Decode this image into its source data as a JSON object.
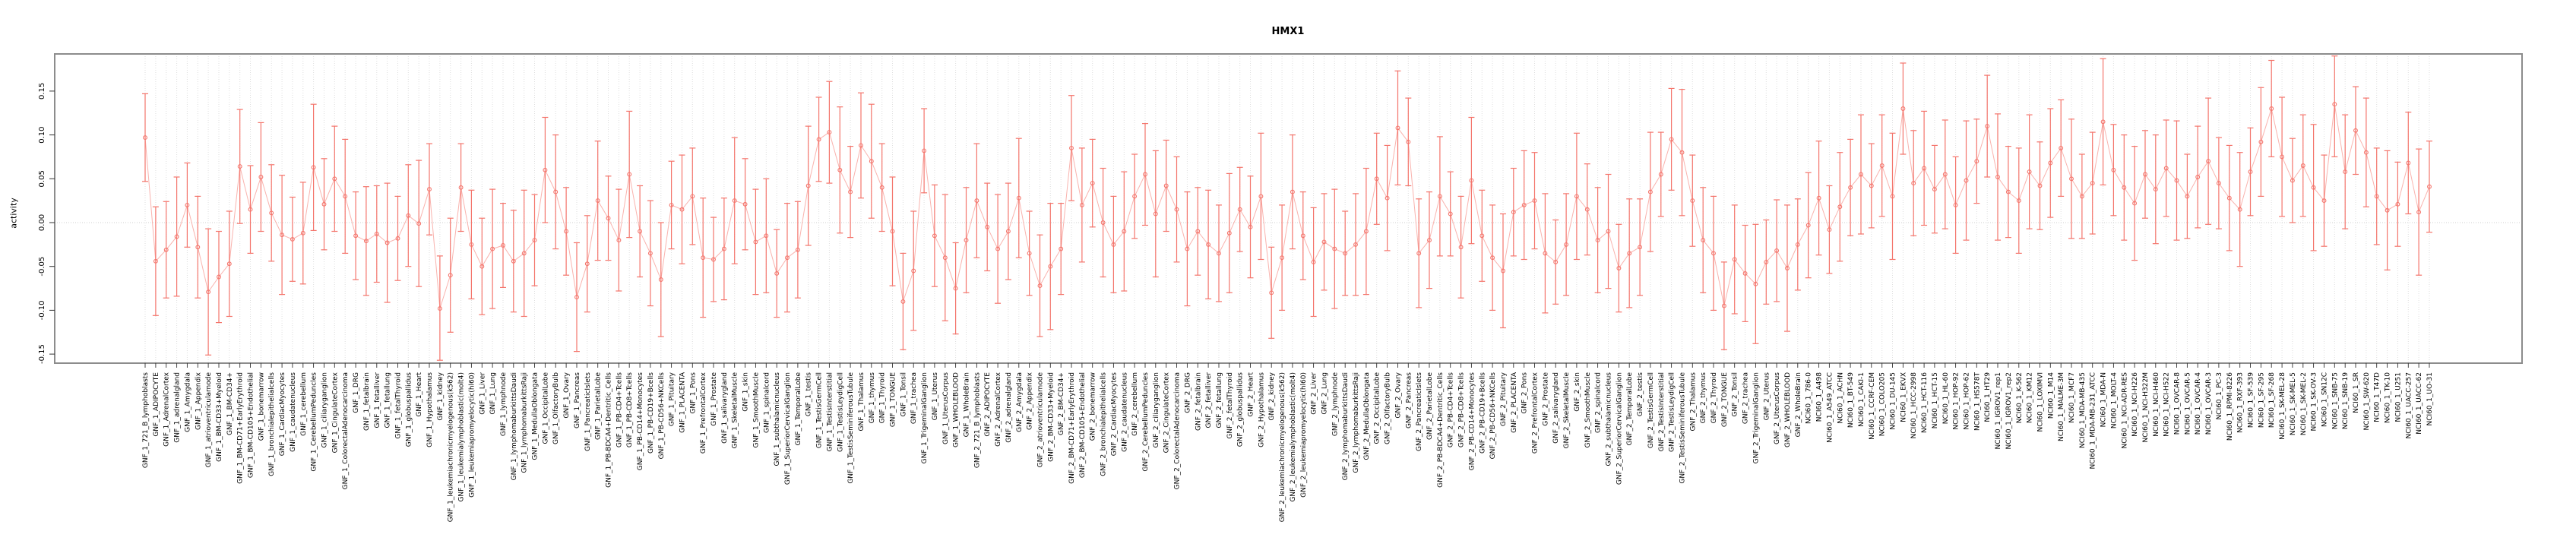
{
  "chart_data": {
    "type": "line",
    "title": "HMX1",
    "xlabel": "",
    "ylabel": "activity",
    "ylim": [
      -0.159,
      0.192
    ],
    "y_ticks": [
      0.15,
      0.1,
      0.05,
      0.0,
      -0.05,
      -0.1,
      -0.15
    ],
    "grid": "vertical-dotted-per-category-plus-dotted-zero-line",
    "legend": "none",
    "marker": "open-circle",
    "error_bars": true,
    "series_color": "#f4756c",
    "panel_border_color": "#8c8c8c",
    "categories": [
      "GNF_1_721_B_lymphoblasts",
      "GNF_1_ADIPOCYTE",
      "GNF_1_AdrenalCortex",
      "GNF_1_adrenalgland",
      "GNF_1_Amygdala",
      "GNF_1_Appendix",
      "GNF_1_atrioventricularnode",
      "GNF_1_BM-CD33+Myeloid",
      "GNF_1_BM-CD34+",
      "GNF_1_BM-CD71+EarlyErythroid",
      "GNF_1_BM-CD105+Endothelial",
      "GNF_1_bonemarrow",
      "GNF_1_bronchialepithelialcells",
      "GNF_1_CardiacMyocytes",
      "GNF_1_caudatenucleus",
      "GNF_1_cerebellum",
      "GNF_1_CerebellumPeduncles",
      "GNF_1_ciliaryganglion",
      "GNF_1_CingulateCortex",
      "GNF_1_ColorectalAdenocarcinoma",
      "GNF_1_DRG",
      "GNF_1_fetalbrain",
      "GNF_1_fetalliver",
      "GNF_1_fetallung",
      "GNF_1_fetalThyroid",
      "GNF_1_globuspallidus",
      "GNF_1_Heart",
      "GNF_1_Hypothalamus",
      "GNF_1_kidney",
      "GNF_1_leukemiachronicmyelogenous(k562)",
      "GNF_1_leukemialymphoblastic(molt4)",
      "GNF_1_leukemiapromyelocytic(hl60)",
      "GNF_1_Liver",
      "GNF_1_Lung",
      "GNF_1_lymphnode",
      "GNF_1_lymphomaburkittsDaudi",
      "GNF_1_lymphomaburkittsRaji",
      "GNF_1_MedullaOblongata",
      "GNF_1_OccipitalLobe",
      "GNF_1_OlfactoryBulb",
      "GNF_1_Ovary",
      "GNF_1_Pancreas",
      "GNF_1_PancreaticIslets",
      "GNF_1_ParietalLobe",
      "GNF_1_PB-BDCA4+Dentritic_Cells",
      "GNF_1_PB-CD4+Tcells",
      "GNF_1_PB-CD8+Tcells",
      "GNF_1_PB-CD14+Monocytes",
      "GNF_1_PB-CD19+Bcells",
      "GNF_1_PB-CD56+NKCells",
      "GNF_1_Pituitary",
      "GNF_1_PLACENTA",
      "GNF_1_Pons",
      "GNF_1_PrefrontalCortex",
      "GNF_1_Prostate",
      "GNF_1_salivarygland",
      "GNF_1_SkeletalMuscle",
      "GNF_1_skin",
      "GNF_1_SmoothMuscle",
      "GNF_1_spinalcord",
      "GNF_1_subthalamicnucleus",
      "GNF_1_SuperiorCervicalGanglion",
      "GNF_1_TemporalLobe",
      "GNF_1_testis",
      "GNF_1_TestisGermCell",
      "GNF_1_TestisInterstitial",
      "GNF_1_TestisLeydigCell",
      "GNF_1_TestisSeminiferousTubule",
      "GNF_1_Thalamus",
      "GNF_1_thymus",
      "GNF_1_Thyroid",
      "GNF_1_TONGUE",
      "GNF_1_Tonsil",
      "GNF_1_trachea",
      "GNF_1_TrigeminalGanglion",
      "GNF_1_Uterus",
      "GNF_1_UterusCorpus",
      "GNF_1_WHOLEBLOOD",
      "GNF_1_WholeBrain",
      "GNF_2_721_B_lymphoblasts",
      "GNF_2_ADIPOCYTE",
      "GNF_2_AdrenalCortex",
      "GNF_2_adrenalgland",
      "GNF_2_Amygdala",
      "GNF_2_Appendix",
      "GNF_2_atrioventricularnode",
      "GNF_2_BM-CD33+Myeloid",
      "GNF_2_BM-CD34+",
      "GNF_2_BM-CD71+EarlyErythroid",
      "GNF_2_BM-CD105+Endothelial",
      "GNF_2_bonemarrow",
      "GNF_2_bronchialepithelialcells",
      "GNF_2_CardiacMyocytes",
      "GNF_2_caudatenucleus",
      "GNF_2_cerebellum",
      "GNF_2_CerebellumPeduncles",
      "GNF_2_ciliaryganglion",
      "GNF_2_CingulateCortex",
      "GNF_2_ColorectalAdenocarcinoma",
      "GNF_2_DRG",
      "GNF_2_fetalbrain",
      "GNF_2_fetalliver",
      "GNF_2_fetallung",
      "GNF_2_fetalThyroid",
      "GNF_2_globuspallidus",
      "GNF_2_Heart",
      "GNF_2_Hypothalamus",
      "GNF_2_kidney",
      "GNF_2_leukemiachronicmyelogenous(k562)",
      "GNF_2_leukemialymphoblastic(molt4)",
      "GNF_2_leukemiapromyelocytic(hl60)",
      "GNF_2_Liver",
      "GNF_2_Lung",
      "GNF_2_lymphnode",
      "GNF_2_lymphomaburkittsDaudi",
      "GNF_2_lymphomaburkittsRaji",
      "GNF_2_MedullaOblongata",
      "GNF_2_OccipitalLobe",
      "GNF_2_OlfactoryBulb",
      "GNF_2_Ovary",
      "GNF_2_Pancreas",
      "GNF_2_PancreaticIslets",
      "GNF_2_ParietalLobe",
      "GNF_2_PB-BDCA4+Dentritic_Cells",
      "GNF_2_PB-CD4+Tcells",
      "GNF_2_PB-CD8+Tcells",
      "GNF_2_PB-CD14+Monocytes",
      "GNF_2_PB-CD19+Bcells",
      "GNF_2_PB-CD56+NKCells",
      "GNF_2_Pituitary",
      "GNF_2_PLACENTA",
      "GNF_2_Pons",
      "GNF_2_PrefrontalCortex",
      "GNF_2_Prostate",
      "GNF_2_salivarygland",
      "GNF_2_SkeletalMuscle",
      "GNF_2_skin",
      "GNF_2_SmoothMuscle",
      "GNF_2_spinalcord",
      "GNF_2_subthalamicnucleus",
      "GNF_2_SuperiorCervicalGanglion",
      "GNF_2_TemporalLobe",
      "GNF_2_testis",
      "GNF_2_TestisGermCell",
      "GNF_2_TestisInterstitial",
      "GNF_2_TestisLeydigCell",
      "GNF_2_TestisSeminiferousTubule",
      "GNF_2_Thalamus",
      "GNF_2_thymus",
      "GNF_2_Thyroid",
      "GNF_2_TONGUE",
      "GNF_2_Tonsil",
      "GNF_2_trachea",
      "GNF_2_TrigeminalGanglion",
      "GNF_2_Uterus",
      "GNF_2_UterusCorpus",
      "GNF_2_WHOLEBLOOD",
      "GNF_2_WholeBrain",
      "NCI60_1_786-0",
      "NCI60_1_A498",
      "NCI60_1_A549_ATCC",
      "NCI60_1_ACHN",
      "NCI60_1_BT-549",
      "NCI60_1_CAKI-1",
      "NCI60_1_CCRF-CEM",
      "NCI60_1_COLO205",
      "NCI60_1_DU-145",
      "NCI60_1_EKVX",
      "NCI60_1_HCC-2998",
      "NCI60_1_HCT-116",
      "NCI60_1_HCT-15",
      "NCI60_1_HL-60",
      "NCI60_1_HOP-92",
      "NCI60_1_HOP-62",
      "NCI60_1_HS578T",
      "NCI60_1_HT29",
      "NCI60_1_IGROV1_rep1",
      "NCI60_1_IGROV1_rep2",
      "NCI60_1_K-562",
      "NCI60_1_KM12",
      "NCI60_1_LOXIMVI",
      "NCI60_1_M14",
      "NCI60_1_MALME-3M",
      "NCI60_1_MCF7",
      "NCI60_1_MDA-MB-435",
      "NCI60_1_MDA-MB-231_ATCC",
      "NCI60_1_MDA-N",
      "NCI60_1_MOLT-4",
      "NCI60_1_NCI-ADR-RES",
      "NCI60_1_NCI-H226",
      "NCI60_1_NCI-H322M",
      "NCI60_1_NCI-H460",
      "NCI60_1_NCI-H522",
      "NCI60_1_OVCAR-8",
      "NCI60_1_OVCAR-5",
      "NCI60_1_OVCAR-4",
      "NCI60_1_OVCAR-3",
      "NCI60_1_PC-3",
      "NCI60_1_RPMI-8226",
      "NCI60_1_RXF-393",
      "NCI60_1_SF-539",
      "NCI60_1_SF-295",
      "NCI60_1_SF-268",
      "NCI60_1_SK-MEL-28",
      "NCI60_1_SK-MEL-5",
      "NCI60_1_SK-MEL-2",
      "NCI60_1_SK-OV-3",
      "NCI60_1_SN12C",
      "NCI60_1_SNB-75",
      "NCI60_1_SNB-19",
      "NCI60_1_SR",
      "NCI60_1_SW-620",
      "NCI60_1_T47D",
      "NCI60_1_TK-10",
      "NCI60_1_U251",
      "NCI60_1_UACC-257",
      "NCI60_1_UACC-62",
      "NCI60_1_UO-31"
    ],
    "values": [
      0.097,
      -0.044,
      -0.031,
      -0.016,
      0.02,
      -0.028,
      -0.079,
      -0.062,
      -0.047,
      0.064,
      0.015,
      0.052,
      0.011,
      -0.014,
      -0.019,
      -0.012,
      0.063,
      0.021,
      0.05,
      0.03,
      -0.015,
      -0.021,
      -0.013,
      -0.023,
      -0.018,
      0.008,
      -0.001,
      0.038,
      -0.098,
      -0.06,
      0.04,
      -0.025,
      -0.05,
      -0.03,
      -0.026,
      -0.044,
      -0.035,
      -0.02,
      0.06,
      0.035,
      -0.01,
      -0.085,
      -0.047,
      0.025,
      0.005,
      -0.02,
      0.055,
      -0.01,
      -0.035,
      -0.065,
      0.02,
      0.015,
      0.03,
      -0.04,
      -0.042,
      -0.03,
      0.025,
      0.021,
      -0.022,
      -0.015,
      -0.058,
      -0.04,
      -0.031,
      0.042,
      0.095,
      0.103,
      0.06,
      0.035,
      0.088,
      0.07,
      0.04,
      -0.01,
      -0.09,
      -0.055,
      0.082,
      -0.015,
      -0.04,
      -0.075,
      -0.02,
      0.025,
      -0.005,
      -0.03,
      -0.01,
      0.028,
      -0.035,
      -0.072,
      -0.05,
      -0.03,
      0.085,
      0.02,
      0.045,
      0.0,
      -0.025,
      -0.01,
      0.03,
      0.055,
      0.01,
      0.042,
      0.015,
      -0.03,
      -0.01,
      -0.025,
      -0.035,
      -0.012,
      0.015,
      -0.005,
      0.03,
      -0.08,
      -0.04,
      0.035,
      -0.015,
      -0.045,
      -0.022,
      -0.03,
      -0.035,
      -0.025,
      -0.01,
      0.05,
      0.028,
      0.108,
      0.092,
      -0.035,
      -0.02,
      0.03,
      0.01,
      -0.028,
      0.048,
      -0.015,
      -0.04,
      -0.055,
      0.012,
      0.02,
      0.025,
      -0.035,
      -0.045,
      -0.025,
      0.03,
      0.015,
      -0.02,
      -0.01,
      -0.052,
      -0.035,
      -0.028,
      0.035,
      0.055,
      0.095,
      0.08,
      0.025,
      -0.02,
      -0.035,
      -0.095,
      -0.042,
      -0.058,
      -0.07,
      -0.045,
      -0.032,
      -0.052,
      -0.025,
      -0.003,
      0.028,
      -0.008,
      0.018,
      0.04,
      0.055,
      0.042,
      0.065,
      0.03,
      0.13,
      0.045,
      0.062,
      0.038,
      0.055,
      0.02,
      0.048,
      0.07,
      0.11,
      0.052,
      0.035,
      0.025,
      0.058,
      0.042,
      0.068,
      0.085,
      0.05,
      0.03,
      0.045,
      0.115,
      0.06,
      0.04,
      0.022,
      0.055,
      0.038,
      0.062,
      0.048,
      0.03,
      0.052,
      0.07,
      0.045,
      0.028,
      0.015,
      0.058,
      0.092,
      0.13,
      0.075,
      0.048,
      0.065,
      0.04,
      0.025,
      0.135,
      0.058,
      0.105,
      0.08,
      0.03,
      0.014,
      0.021,
      0.068,
      0.012,
      0.041
    ],
    "ci_halfwidth_cycle": [
      0.05,
      0.062,
      0.055,
      0.068,
      0.048,
      0.058,
      0.072,
      0.052,
      0.06,
      0.065
    ]
  }
}
